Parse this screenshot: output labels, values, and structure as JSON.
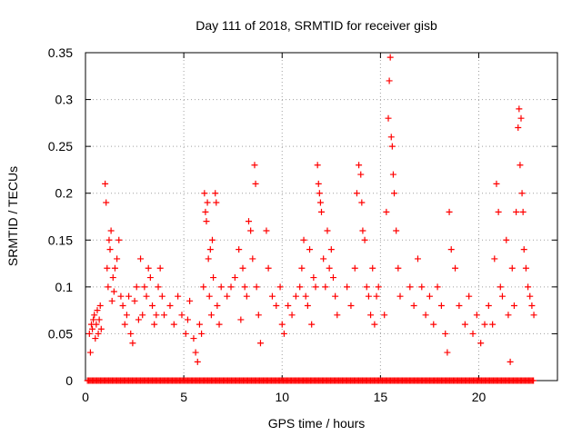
{
  "chart_data": {
    "type": "scatter",
    "title": "Day 111 of 2018, SRMTID for receiver gisb",
    "xlabel": "GPS time / hours",
    "ylabel": "SRMTID / TECUs",
    "xlim": [
      0,
      24
    ],
    "ylim": [
      0,
      0.35
    ],
    "xticks": [
      0,
      5,
      10,
      15,
      20
    ],
    "xtick_labels": [
      "0",
      "5",
      "10",
      "15",
      "20"
    ],
    "yticks": [
      0,
      0.05,
      0.1,
      0.15,
      0.2,
      0.25,
      0.3,
      0.35
    ],
    "ytick_labels": [
      "0",
      "0.05",
      "0.1",
      "0.15",
      "0.2",
      "0.25",
      "0.3",
      "0.35"
    ],
    "grid": true,
    "marker": "plus",
    "marker_color": "#ff0000",
    "x_range_of_data": [
      0.1,
      22.8
    ],
    "series": [
      {
        "points": [
          [
            0.2,
            0.05
          ],
          [
            0.25,
            0.03
          ],
          [
            0.3,
            0.06
          ],
          [
            0.35,
            0.055
          ],
          [
            0.4,
            0.065
          ],
          [
            0.45,
            0.07
          ],
          [
            0.5,
            0.045
          ],
          [
            0.55,
            0.06
          ],
          [
            0.6,
            0.075
          ],
          [
            0.65,
            0.05
          ],
          [
            0.7,
            0.065
          ],
          [
            0.75,
            0.08
          ],
          [
            0.8,
            0.055
          ],
          [
            1.0,
            0.21
          ],
          [
            1.05,
            0.19
          ],
          [
            1.1,
            0.12
          ],
          [
            1.15,
            0.1
          ],
          [
            1.2,
            0.15
          ],
          [
            1.25,
            0.14
          ],
          [
            1.3,
            0.16
          ],
          [
            1.35,
            0.085
          ],
          [
            1.4,
            0.11
          ],
          [
            1.45,
            0.095
          ],
          [
            1.5,
            0.12
          ],
          [
            1.6,
            0.13
          ],
          [
            1.7,
            0.15
          ],
          [
            1.8,
            0.09
          ],
          [
            1.9,
            0.08
          ],
          [
            2.0,
            0.06
          ],
          [
            2.1,
            0.07
          ],
          [
            2.2,
            0.09
          ],
          [
            2.3,
            0.05
          ],
          [
            2.4,
            0.04
          ],
          [
            2.5,
            0.085
          ],
          [
            2.6,
            0.1
          ],
          [
            2.7,
            0.065
          ],
          [
            2.8,
            0.13
          ],
          [
            2.9,
            0.07
          ],
          [
            3.0,
            0.1
          ],
          [
            3.1,
            0.09
          ],
          [
            3.2,
            0.12
          ],
          [
            3.3,
            0.11
          ],
          [
            3.4,
            0.08
          ],
          [
            3.5,
            0.06
          ],
          [
            3.6,
            0.07
          ],
          [
            3.7,
            0.1
          ],
          [
            3.8,
            0.12
          ],
          [
            3.9,
            0.09
          ],
          [
            4.0,
            0.07
          ],
          [
            4.3,
            0.08
          ],
          [
            4.5,
            0.06
          ],
          [
            4.7,
            0.09
          ],
          [
            4.9,
            0.07
          ],
          [
            5.1,
            0.05
          ],
          [
            5.2,
            0.065
          ],
          [
            5.3,
            0.085
          ],
          [
            5.5,
            0.045
          ],
          [
            5.6,
            0.03
          ],
          [
            5.7,
            0.02
          ],
          [
            5.8,
            0.06
          ],
          [
            5.9,
            0.05
          ],
          [
            6.0,
            0.1
          ],
          [
            6.05,
            0.2
          ],
          [
            6.1,
            0.18
          ],
          [
            6.15,
            0.17
          ],
          [
            6.2,
            0.19
          ],
          [
            6.25,
            0.13
          ],
          [
            6.3,
            0.09
          ],
          [
            6.35,
            0.14
          ],
          [
            6.4,
            0.07
          ],
          [
            6.45,
            0.15
          ],
          [
            6.5,
            0.11
          ],
          [
            6.6,
            0.2
          ],
          [
            6.65,
            0.19
          ],
          [
            6.7,
            0.08
          ],
          [
            6.8,
            0.06
          ],
          [
            6.9,
            0.1
          ],
          [
            7.2,
            0.09
          ],
          [
            7.4,
            0.1
          ],
          [
            7.6,
            0.11
          ],
          [
            7.8,
            0.14
          ],
          [
            7.9,
            0.065
          ],
          [
            8.0,
            0.12
          ],
          [
            8.1,
            0.1
          ],
          [
            8.2,
            0.09
          ],
          [
            8.3,
            0.17
          ],
          [
            8.4,
            0.16
          ],
          [
            8.5,
            0.13
          ],
          [
            8.6,
            0.23
          ],
          [
            8.65,
            0.21
          ],
          [
            8.7,
            0.1
          ],
          [
            8.8,
            0.07
          ],
          [
            8.9,
            0.04
          ],
          [
            9.2,
            0.16
          ],
          [
            9.3,
            0.12
          ],
          [
            9.5,
            0.09
          ],
          [
            9.7,
            0.08
          ],
          [
            9.9,
            0.1
          ],
          [
            10.0,
            0.06
          ],
          [
            10.1,
            0.05
          ],
          [
            10.3,
            0.08
          ],
          [
            10.5,
            0.07
          ],
          [
            10.7,
            0.09
          ],
          [
            10.9,
            0.1
          ],
          [
            11.0,
            0.12
          ],
          [
            11.1,
            0.15
          ],
          [
            11.2,
            0.09
          ],
          [
            11.3,
            0.08
          ],
          [
            11.4,
            0.14
          ],
          [
            11.5,
            0.06
          ],
          [
            11.6,
            0.11
          ],
          [
            11.7,
            0.1
          ],
          [
            11.8,
            0.23
          ],
          [
            11.85,
            0.21
          ],
          [
            11.9,
            0.2
          ],
          [
            11.95,
            0.19
          ],
          [
            12.0,
            0.18
          ],
          [
            12.1,
            0.13
          ],
          [
            12.2,
            0.1
          ],
          [
            12.3,
            0.16
          ],
          [
            12.4,
            0.12
          ],
          [
            12.5,
            0.14
          ],
          [
            12.6,
            0.11
          ],
          [
            12.7,
            0.09
          ],
          [
            12.8,
            0.07
          ],
          [
            13.3,
            0.1
          ],
          [
            13.5,
            0.08
          ],
          [
            13.7,
            0.12
          ],
          [
            13.8,
            0.2
          ],
          [
            13.9,
            0.23
          ],
          [
            14.0,
            0.22
          ],
          [
            14.05,
            0.19
          ],
          [
            14.1,
            0.16
          ],
          [
            14.2,
            0.15
          ],
          [
            14.3,
            0.1
          ],
          [
            14.4,
            0.09
          ],
          [
            14.5,
            0.07
          ],
          [
            14.6,
            0.12
          ],
          [
            14.7,
            0.06
          ],
          [
            14.8,
            0.09
          ],
          [
            14.9,
            0.1
          ],
          [
            15.2,
            0.07
          ],
          [
            15.3,
            0.18
          ],
          [
            15.4,
            0.28
          ],
          [
            15.45,
            0.32
          ],
          [
            15.5,
            0.345
          ],
          [
            15.55,
            0.26
          ],
          [
            15.6,
            0.25
          ],
          [
            15.65,
            0.22
          ],
          [
            15.7,
            0.2
          ],
          [
            15.8,
            0.16
          ],
          [
            15.9,
            0.12
          ],
          [
            16.0,
            0.09
          ],
          [
            16.5,
            0.1
          ],
          [
            16.7,
            0.08
          ],
          [
            16.9,
            0.13
          ],
          [
            17.1,
            0.1
          ],
          [
            17.3,
            0.07
          ],
          [
            17.5,
            0.09
          ],
          [
            17.7,
            0.06
          ],
          [
            17.9,
            0.1
          ],
          [
            18.1,
            0.08
          ],
          [
            18.3,
            0.05
          ],
          [
            18.4,
            0.03
          ],
          [
            18.5,
            0.18
          ],
          [
            18.6,
            0.14
          ],
          [
            18.8,
            0.12
          ],
          [
            19.0,
            0.08
          ],
          [
            19.3,
            0.06
          ],
          [
            19.5,
            0.09
          ],
          [
            19.7,
            0.05
          ],
          [
            19.9,
            0.07
          ],
          [
            20.1,
            0.04
          ],
          [
            20.3,
            0.06
          ],
          [
            20.5,
            0.08
          ],
          [
            20.7,
            0.06
          ],
          [
            20.8,
            0.13
          ],
          [
            20.9,
            0.21
          ],
          [
            21.0,
            0.18
          ],
          [
            21.1,
            0.1
          ],
          [
            21.2,
            0.09
          ],
          [
            21.4,
            0.15
          ],
          [
            21.5,
            0.07
          ],
          [
            21.6,
            0.02
          ],
          [
            21.7,
            0.12
          ],
          [
            21.8,
            0.08
          ],
          [
            21.9,
            0.18
          ],
          [
            22.0,
            0.27
          ],
          [
            22.05,
            0.29
          ],
          [
            22.1,
            0.23
          ],
          [
            22.15,
            0.28
          ],
          [
            22.2,
            0.2
          ],
          [
            22.25,
            0.18
          ],
          [
            22.3,
            0.14
          ],
          [
            22.4,
            0.12
          ],
          [
            22.5,
            0.1
          ],
          [
            22.6,
            0.09
          ],
          [
            22.7,
            0.08
          ],
          [
            22.8,
            0.07
          ]
        ]
      }
    ]
  }
}
